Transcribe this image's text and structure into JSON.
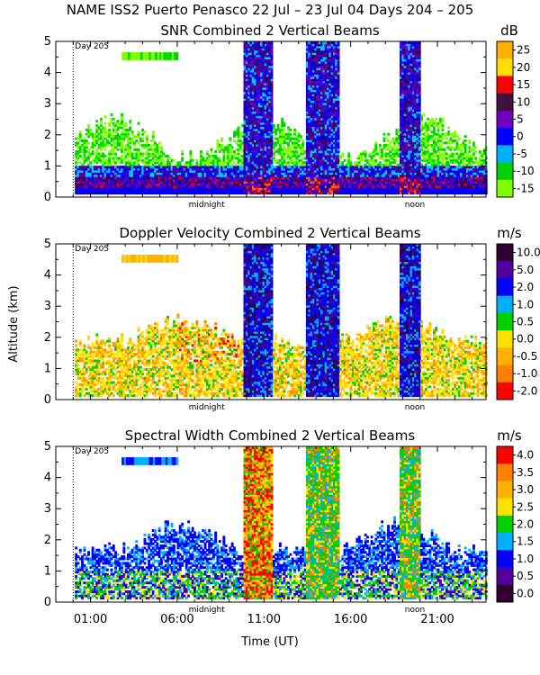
{
  "figure_title": "NAME ISS2 Puerto Penasco  22 Jul – 23 Jul 04 Days 204 – 205",
  "day_marker_label": "Day 205",
  "ylabel": "Altitude (km)",
  "xlabel": "Time (UT)",
  "x_ticks": [
    "01:00",
    "06:00",
    "11:00",
    "16:00",
    "21:00"
  ],
  "x_tick_hours": [
    1,
    6,
    11,
    16,
    21
  ],
  "x_annotations": [
    {
      "label": "midnight",
      "hour": 7.7
    },
    {
      "label": "noon",
      "hour": 19.7
    }
  ],
  "day_marker_hour": 0.0,
  "x_range_hours": [
    -1.0,
    23.8
  ],
  "y_range_km": [
    0,
    5
  ],
  "y_ticks": [
    "0",
    "1",
    "2",
    "3",
    "4",
    "5"
  ],
  "colors": {
    "background": "#ffffff",
    "axis": "#000000",
    "palette": [
      "#80ff00",
      "#00e000",
      "#00c8ff",
      "#0000ff",
      "#5000a0",
      "#400040",
      "#ff0000",
      "#ff9000",
      "#ffe000"
    ]
  },
  "chart_data": [
    {
      "type": "heatmap",
      "title": "SNR Combined 2 Vertical Beams",
      "units": "dB",
      "colorbar_labels": [
        "25",
        "20",
        "15",
        "10",
        "5",
        "0",
        "-5",
        "-10",
        "-15"
      ],
      "colorbar_colors": [
        "#ffb000",
        "#ffe000",
        "#ff0000",
        "#401040",
        "#7000c0",
        "#0000ff",
        "#00b0ff",
        "#00d000",
        "#80ff00"
      ],
      "features": [
        {
          "kind": "layer",
          "desc": "strong low-level return",
          "alt_km": [
            0.2,
            0.6
          ],
          "hours": [
            -1.0,
            23.8
          ],
          "level_db": 5
        },
        {
          "kind": "layer",
          "desc": "moderate return",
          "alt_km": [
            0.6,
            1.6
          ],
          "hours": [
            -1.0,
            23.8
          ],
          "level_db": -5
        },
        {
          "kind": "column",
          "desc": "precipitation column",
          "hours": [
            9.8,
            11.4
          ],
          "alt_km": [
            0,
            5
          ]
        },
        {
          "kind": "column",
          "desc": "precipitation column",
          "hours": [
            13.3,
            15.3
          ],
          "alt_km": [
            0,
            5
          ]
        },
        {
          "kind": "column",
          "desc": "precipitation column",
          "hours": [
            18.8,
            20.0
          ],
          "alt_km": [
            0,
            5
          ]
        }
      ]
    },
    {
      "type": "heatmap",
      "title": "Doppler Velocity Combined 2 Vertical Beams",
      "units": "m/s",
      "colorbar_labels": [
        "10.0",
        "5.0",
        "2.0",
        "1.0",
        "0.5",
        "0.0",
        "-0.5",
        "-1.0",
        "-2.0"
      ],
      "colorbar_colors": [
        "#300030",
        "#5000a0",
        "#0000ff",
        "#00b0ff",
        "#00d000",
        "#ffe000",
        "#ffb000",
        "#ff8000",
        "#ff0000"
      ],
      "features": [
        {
          "kind": "layer",
          "desc": "weak up/down motion",
          "alt_km": [
            0,
            1.8
          ],
          "hours": [
            -1.0,
            23.8
          ],
          "level_ms": 0.0
        },
        {
          "kind": "column",
          "desc": "falling precipitation",
          "hours": [
            9.8,
            11.4
          ],
          "alt_km": [
            0,
            5
          ],
          "level_ms": 5.0
        },
        {
          "kind": "column",
          "desc": "falling precipitation",
          "hours": [
            13.3,
            15.3
          ],
          "alt_km": [
            0,
            5
          ],
          "level_ms": 5.0
        },
        {
          "kind": "column",
          "desc": "falling precipitation",
          "hours": [
            18.8,
            20.0
          ],
          "alt_km": [
            0,
            5
          ],
          "level_ms": 5.0
        }
      ]
    },
    {
      "type": "heatmap",
      "title": "Spectral Width Combined 2 Vertical Beams",
      "units": "m/s",
      "colorbar_labels": [
        "4.0",
        "3.5",
        "3.0",
        "2.5",
        "2.0",
        "1.5",
        "1.0",
        "0.5",
        "0.0"
      ],
      "colorbar_colors": [
        "#ff0000",
        "#ff8000",
        "#ffb000",
        "#ffe000",
        "#00d000",
        "#00b0ff",
        "#0000ff",
        "#5000a0",
        "#300030"
      ],
      "features": [
        {
          "kind": "layer",
          "desc": "narrow widths near surface",
          "alt_km": [
            0,
            1.0
          ],
          "hours": [
            -1.0,
            23.8
          ],
          "level_ms": 0.5
        },
        {
          "kind": "column",
          "desc": "broad widths in rain",
          "hours": [
            9.8,
            11.4
          ],
          "alt_km": [
            0,
            5
          ],
          "level_ms": 4.0
        },
        {
          "kind": "column",
          "desc": "broad widths in rain",
          "hours": [
            13.3,
            15.3
          ],
          "alt_km": [
            0,
            5
          ],
          "level_ms": 2.0
        },
        {
          "kind": "column",
          "desc": "broad widths in rain",
          "hours": [
            18.8,
            20.0
          ],
          "alt_km": [
            0,
            5
          ],
          "level_ms": 2.0
        }
      ]
    }
  ]
}
